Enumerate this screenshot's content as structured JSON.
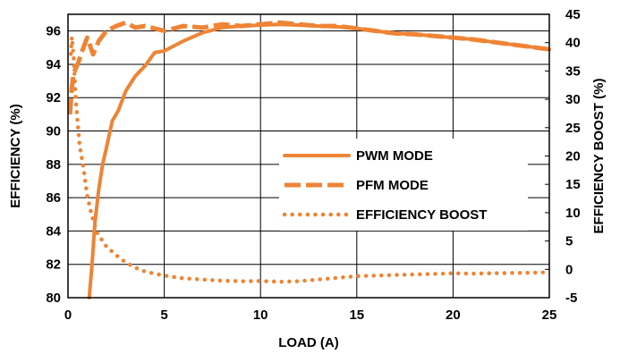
{
  "colors": {
    "series": "#EE8435",
    "grid": "#000000",
    "text": "#000000"
  },
  "chart_data": {
    "type": "line",
    "xlabel": "LOAD (A)",
    "ylabel": "EFFICIENCY (%)",
    "y2label": "EFFICIENCY BOOST (%)",
    "xlim": [
      0,
      25
    ],
    "ylim": [
      80,
      97
    ],
    "y2lim": [
      -5,
      45
    ],
    "xticks": [
      0,
      5,
      10,
      15,
      20,
      25
    ],
    "yticks": [
      80,
      82,
      84,
      86,
      88,
      90,
      92,
      94,
      96
    ],
    "y2ticks": [
      -5,
      0,
      5,
      10,
      15,
      20,
      25,
      30,
      35,
      40,
      45
    ],
    "grid": true,
    "legend_position": "center-right",
    "series": [
      {
        "name": "PWM MODE",
        "axis": "left",
        "style": "solid",
        "x": [
          1.1,
          1.25,
          1.4,
          1.6,
          1.8,
          2.0,
          2.3,
          2.6,
          3.0,
          3.5,
          4.0,
          4.5,
          5.0,
          6.0,
          7.0,
          8.0,
          9.0,
          10.0,
          11.0,
          12.0,
          13.0,
          14.0,
          15.0,
          16.0,
          17.0,
          18.0,
          19.0,
          20.0,
          21.0,
          22.0,
          23.0,
          24.0,
          25.0
        ],
        "y": [
          80.0,
          82.0,
          84.5,
          86.5,
          88.0,
          89.0,
          90.6,
          91.2,
          92.4,
          93.3,
          93.9,
          94.7,
          94.8,
          95.4,
          95.9,
          96.2,
          96.3,
          96.35,
          96.4,
          96.35,
          96.3,
          96.25,
          96.15,
          96.0,
          95.85,
          95.8,
          95.7,
          95.6,
          95.5,
          95.35,
          95.2,
          95.05,
          94.9
        ]
      },
      {
        "name": "PFM MODE",
        "axis": "left",
        "style": "dashed",
        "x": [
          0.1,
          0.2,
          0.3,
          0.5,
          0.8,
          1.0,
          1.3,
          1.6,
          2.0,
          2.5,
          3.0,
          3.5,
          4.0,
          5.0,
          6.0,
          7.0,
          8.0,
          9.0,
          10.0,
          11.0,
          12.0,
          13.0,
          14.0,
          15.0,
          16.0,
          17.0,
          18.0,
          19.0,
          20.0,
          21.0,
          22.0,
          23.0,
          24.0,
          25.0
        ],
        "y": [
          91.0,
          92.6,
          93.5,
          94.0,
          95.0,
          95.6,
          94.6,
          95.4,
          96.0,
          96.3,
          96.5,
          96.2,
          96.3,
          96.0,
          96.3,
          96.2,
          96.4,
          96.3,
          96.4,
          96.5,
          96.4,
          96.3,
          96.3,
          96.15,
          96.0,
          95.85,
          95.8,
          95.7,
          95.6,
          95.5,
          95.35,
          95.2,
          95.05,
          94.9
        ]
      },
      {
        "name": "EFFICIENCY BOOST",
        "axis": "right",
        "style": "dotted",
        "x": [
          0.15,
          0.2,
          0.3,
          0.4,
          0.6,
          0.8,
          1.0,
          1.2,
          1.5,
          2.0,
          2.5,
          3.0,
          3.5,
          4.0,
          5.0,
          6.0,
          7.0,
          8.0,
          9.0,
          10.0,
          11.0,
          12.0,
          13.0,
          14.0,
          15.0,
          16.0,
          17.0,
          18.0,
          19.0,
          20.0,
          21.0,
          22.0,
          23.0,
          24.0,
          25.0
        ],
        "y": [
          38.0,
          41.0,
          37.0,
          30.0,
          22.0,
          18.0,
          13.0,
          10.0,
          6.5,
          4.0,
          2.5,
          1.2,
          0.3,
          -0.4,
          -1.1,
          -1.6,
          -1.8,
          -2.0,
          -2.1,
          -2.05,
          -2.2,
          -2.1,
          -1.8,
          -1.5,
          -1.2,
          -1.1,
          -1.0,
          -0.9,
          -0.8,
          -0.7,
          -0.75,
          -0.7,
          -0.65,
          -0.6,
          -0.5
        ]
      }
    ]
  }
}
